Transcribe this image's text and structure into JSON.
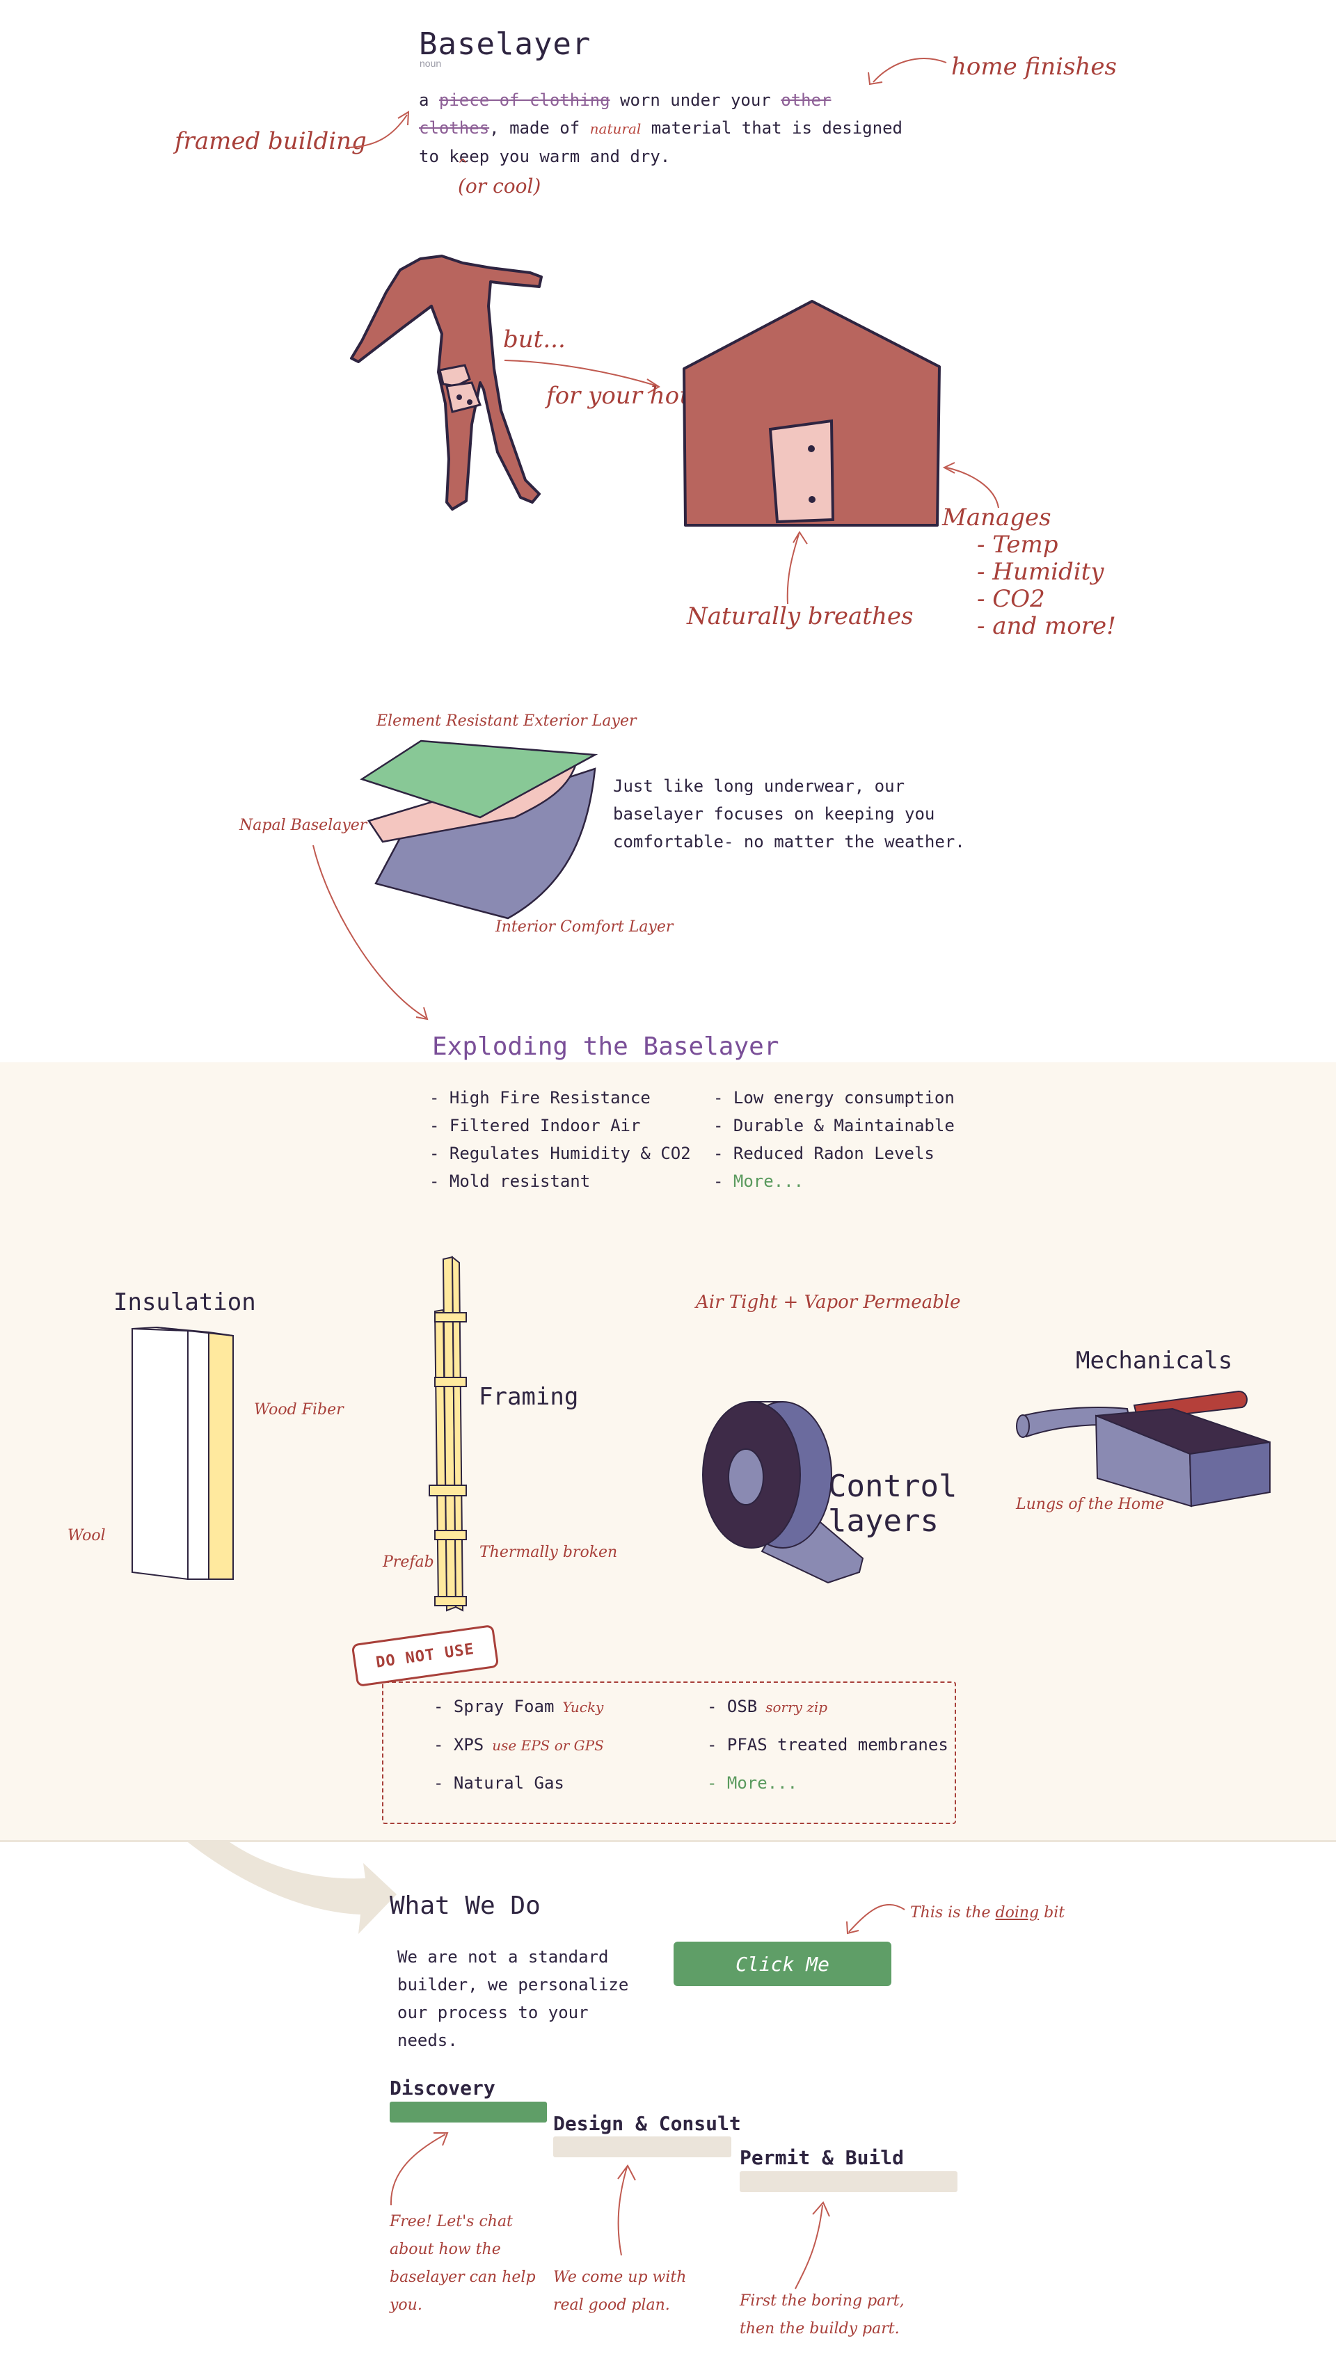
{
  "definition": {
    "title": "Baselayer",
    "part_of_speech": "noun",
    "word_a": "a",
    "struck_1": "piece of clothing",
    "mid_1": "worn under your",
    "struck_2": "other clothes",
    "comma": ",",
    "made_of": "made of",
    "natural": "natural",
    "rest": "material that is designed to keep you warm and dry.",
    "caret": "^",
    "insert_note": "(or cool)",
    "note_framed": "framed building",
    "note_home": "home finishes"
  },
  "illustrations": {
    "but": "but...",
    "for_house": "for your house!",
    "manages": "Manages",
    "manages_items": [
      "- Temp",
      "- Humidity",
      "- CO2",
      "- and more!"
    ],
    "breathes": "Naturally breathes",
    "colors": {
      "suit": "#b8655e",
      "door": "#f2c6c0",
      "outline": "#2e2440"
    }
  },
  "layers": {
    "exterior_label": "Element Resistant Exterior Layer",
    "napal_label": "Napal Baselayer",
    "interior_label": "Interior Comfort Layer",
    "text": "Just like long underwear, our baselayer focuses on keeping you comfortable- no matter the weather.",
    "colors": {
      "exterior": "#88c896",
      "napal": "#f4c6c0",
      "interior": "#8a8ab2"
    }
  },
  "exploding": {
    "title": "Exploding the Baselayer",
    "benefits_left": [
      "- High Fire Resistance",
      "- Filtered Indoor Air",
      "- Regulates Humidity & CO2",
      "- Mold resistant"
    ],
    "benefits_right": [
      "- Low energy consumption",
      "- Durable & Maintainable",
      "- Reduced Radon Levels"
    ],
    "more_prefix": "- ",
    "more": "More...",
    "insulation": "Insulation",
    "wood_fiber": "Wood Fiber",
    "wool": "Wool",
    "framing": "Framing",
    "prefab": "Prefab",
    "thermally_broken": "Thermally broken",
    "airtight": "Air Tight + Vapor Permeable",
    "control_1": "Control",
    "control_2": "layers",
    "mechanicals": "Mechanicals",
    "lungs": "Lungs of the Home"
  },
  "do_not_use": {
    "stamp": "DO NOT USE",
    "items": [
      {
        "label": "- Spray Foam",
        "note": "Yucky"
      },
      {
        "label": "- OSB",
        "note": "sorry zip"
      },
      {
        "label": "- XPS",
        "note": "use EPS or GPS"
      },
      {
        "label": "- PFAS treated membranes",
        "note": ""
      },
      {
        "label": "- Natural Gas",
        "note": ""
      }
    ],
    "more": "- More..."
  },
  "what_we_do": {
    "title": "What We Do",
    "text": "We are not a standard builder, we personalize our process to your needs.",
    "button": "Click Me",
    "note_prefix": "This is the ",
    "note_doing": "doing",
    "note_suffix": " bit",
    "steps": [
      {
        "title": "Discovery",
        "note": "Free! Let's chat about how the baselayer can help you."
      },
      {
        "title": "Design & Consult",
        "note": "We come up with real good plan."
      },
      {
        "title": "Permit & Build",
        "note": "First the boring part, then the buildy part."
      }
    ]
  }
}
